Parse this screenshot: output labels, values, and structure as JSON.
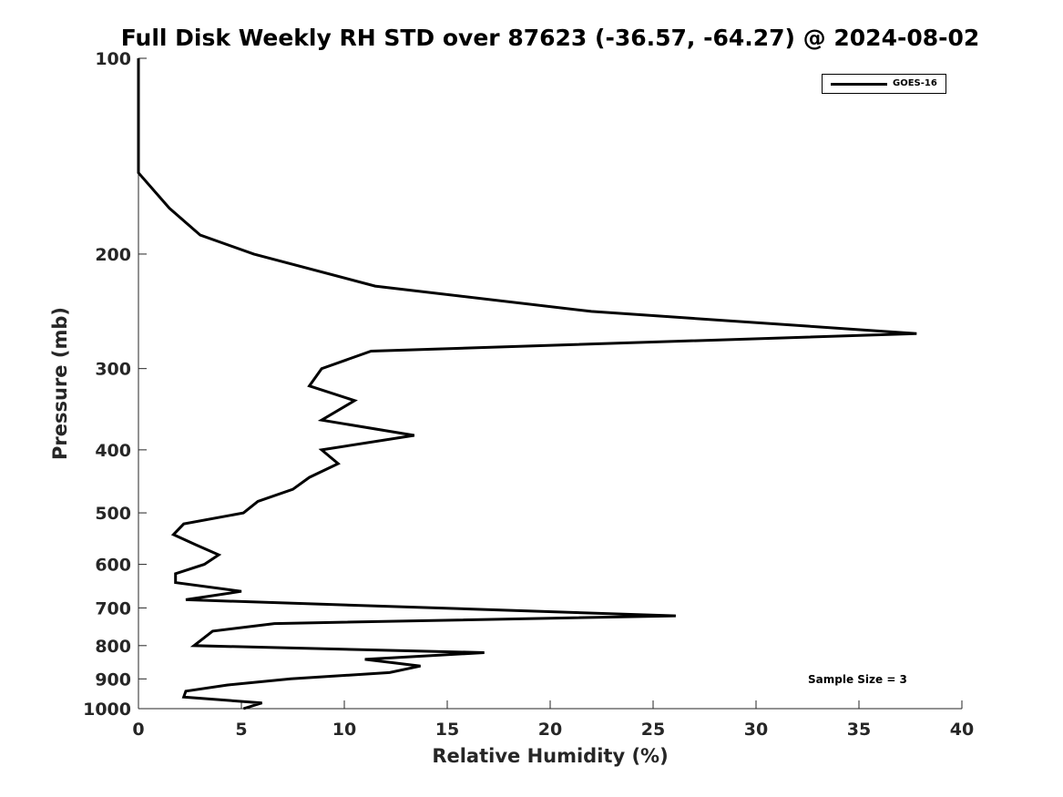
{
  "chart_data": {
    "type": "line",
    "title": "Full Disk Weekly RH STD over 87623 (-36.57, -64.27) @ 2024-08-02",
    "xlabel": "Relative Humidity (%)",
    "ylabel": "Pressure (mb)",
    "xlim": [
      0,
      40
    ],
    "ylim": [
      1000,
      100
    ],
    "yscale": "log",
    "xticks": [
      0,
      5,
      10,
      15,
      20,
      25,
      30,
      35,
      40
    ],
    "yticks": [
      100,
      200,
      300,
      400,
      500,
      600,
      700,
      800,
      900,
      1000
    ],
    "grid": false,
    "legend_position": "top-right",
    "annotation": "Sample Size = 3",
    "series": [
      {
        "name": "GOES-16",
        "color": "#000000",
        "points": [
          [
            0,
            100
          ],
          [
            0,
            150
          ],
          [
            1.5,
            170
          ],
          [
            3.0,
            187
          ],
          [
            5.6,
            200
          ],
          [
            11.5,
            224
          ],
          [
            22.0,
            245
          ],
          [
            37.8,
            265
          ],
          [
            11.3,
            282
          ],
          [
            8.9,
            300
          ],
          [
            8.3,
            319
          ],
          [
            10.5,
            336
          ],
          [
            8.9,
            360
          ],
          [
            13.4,
            380
          ],
          [
            8.9,
            400
          ],
          [
            9.7,
            420
          ],
          [
            8.3,
            441
          ],
          [
            7.5,
            460
          ],
          [
            5.8,
            480
          ],
          [
            5.1,
            500
          ],
          [
            2.2,
            520
          ],
          [
            1.7,
            540
          ],
          [
            2.8,
            560
          ],
          [
            3.9,
            580
          ],
          [
            3.2,
            600
          ],
          [
            1.8,
            620
          ],
          [
            1.8,
            640
          ],
          [
            5.0,
            660
          ],
          [
            2.3,
            680
          ],
          [
            26.1,
            720
          ],
          [
            6.6,
            740
          ],
          [
            3.6,
            760
          ],
          [
            2.7,
            800
          ],
          [
            16.8,
            820
          ],
          [
            11.0,
            840
          ],
          [
            13.7,
            860
          ],
          [
            12.2,
            880
          ],
          [
            7.4,
            900
          ],
          [
            4.3,
            920
          ],
          [
            2.3,
            940
          ],
          [
            2.2,
            960
          ],
          [
            6.0,
            980
          ],
          [
            5.1,
            1000
          ]
        ]
      }
    ]
  }
}
